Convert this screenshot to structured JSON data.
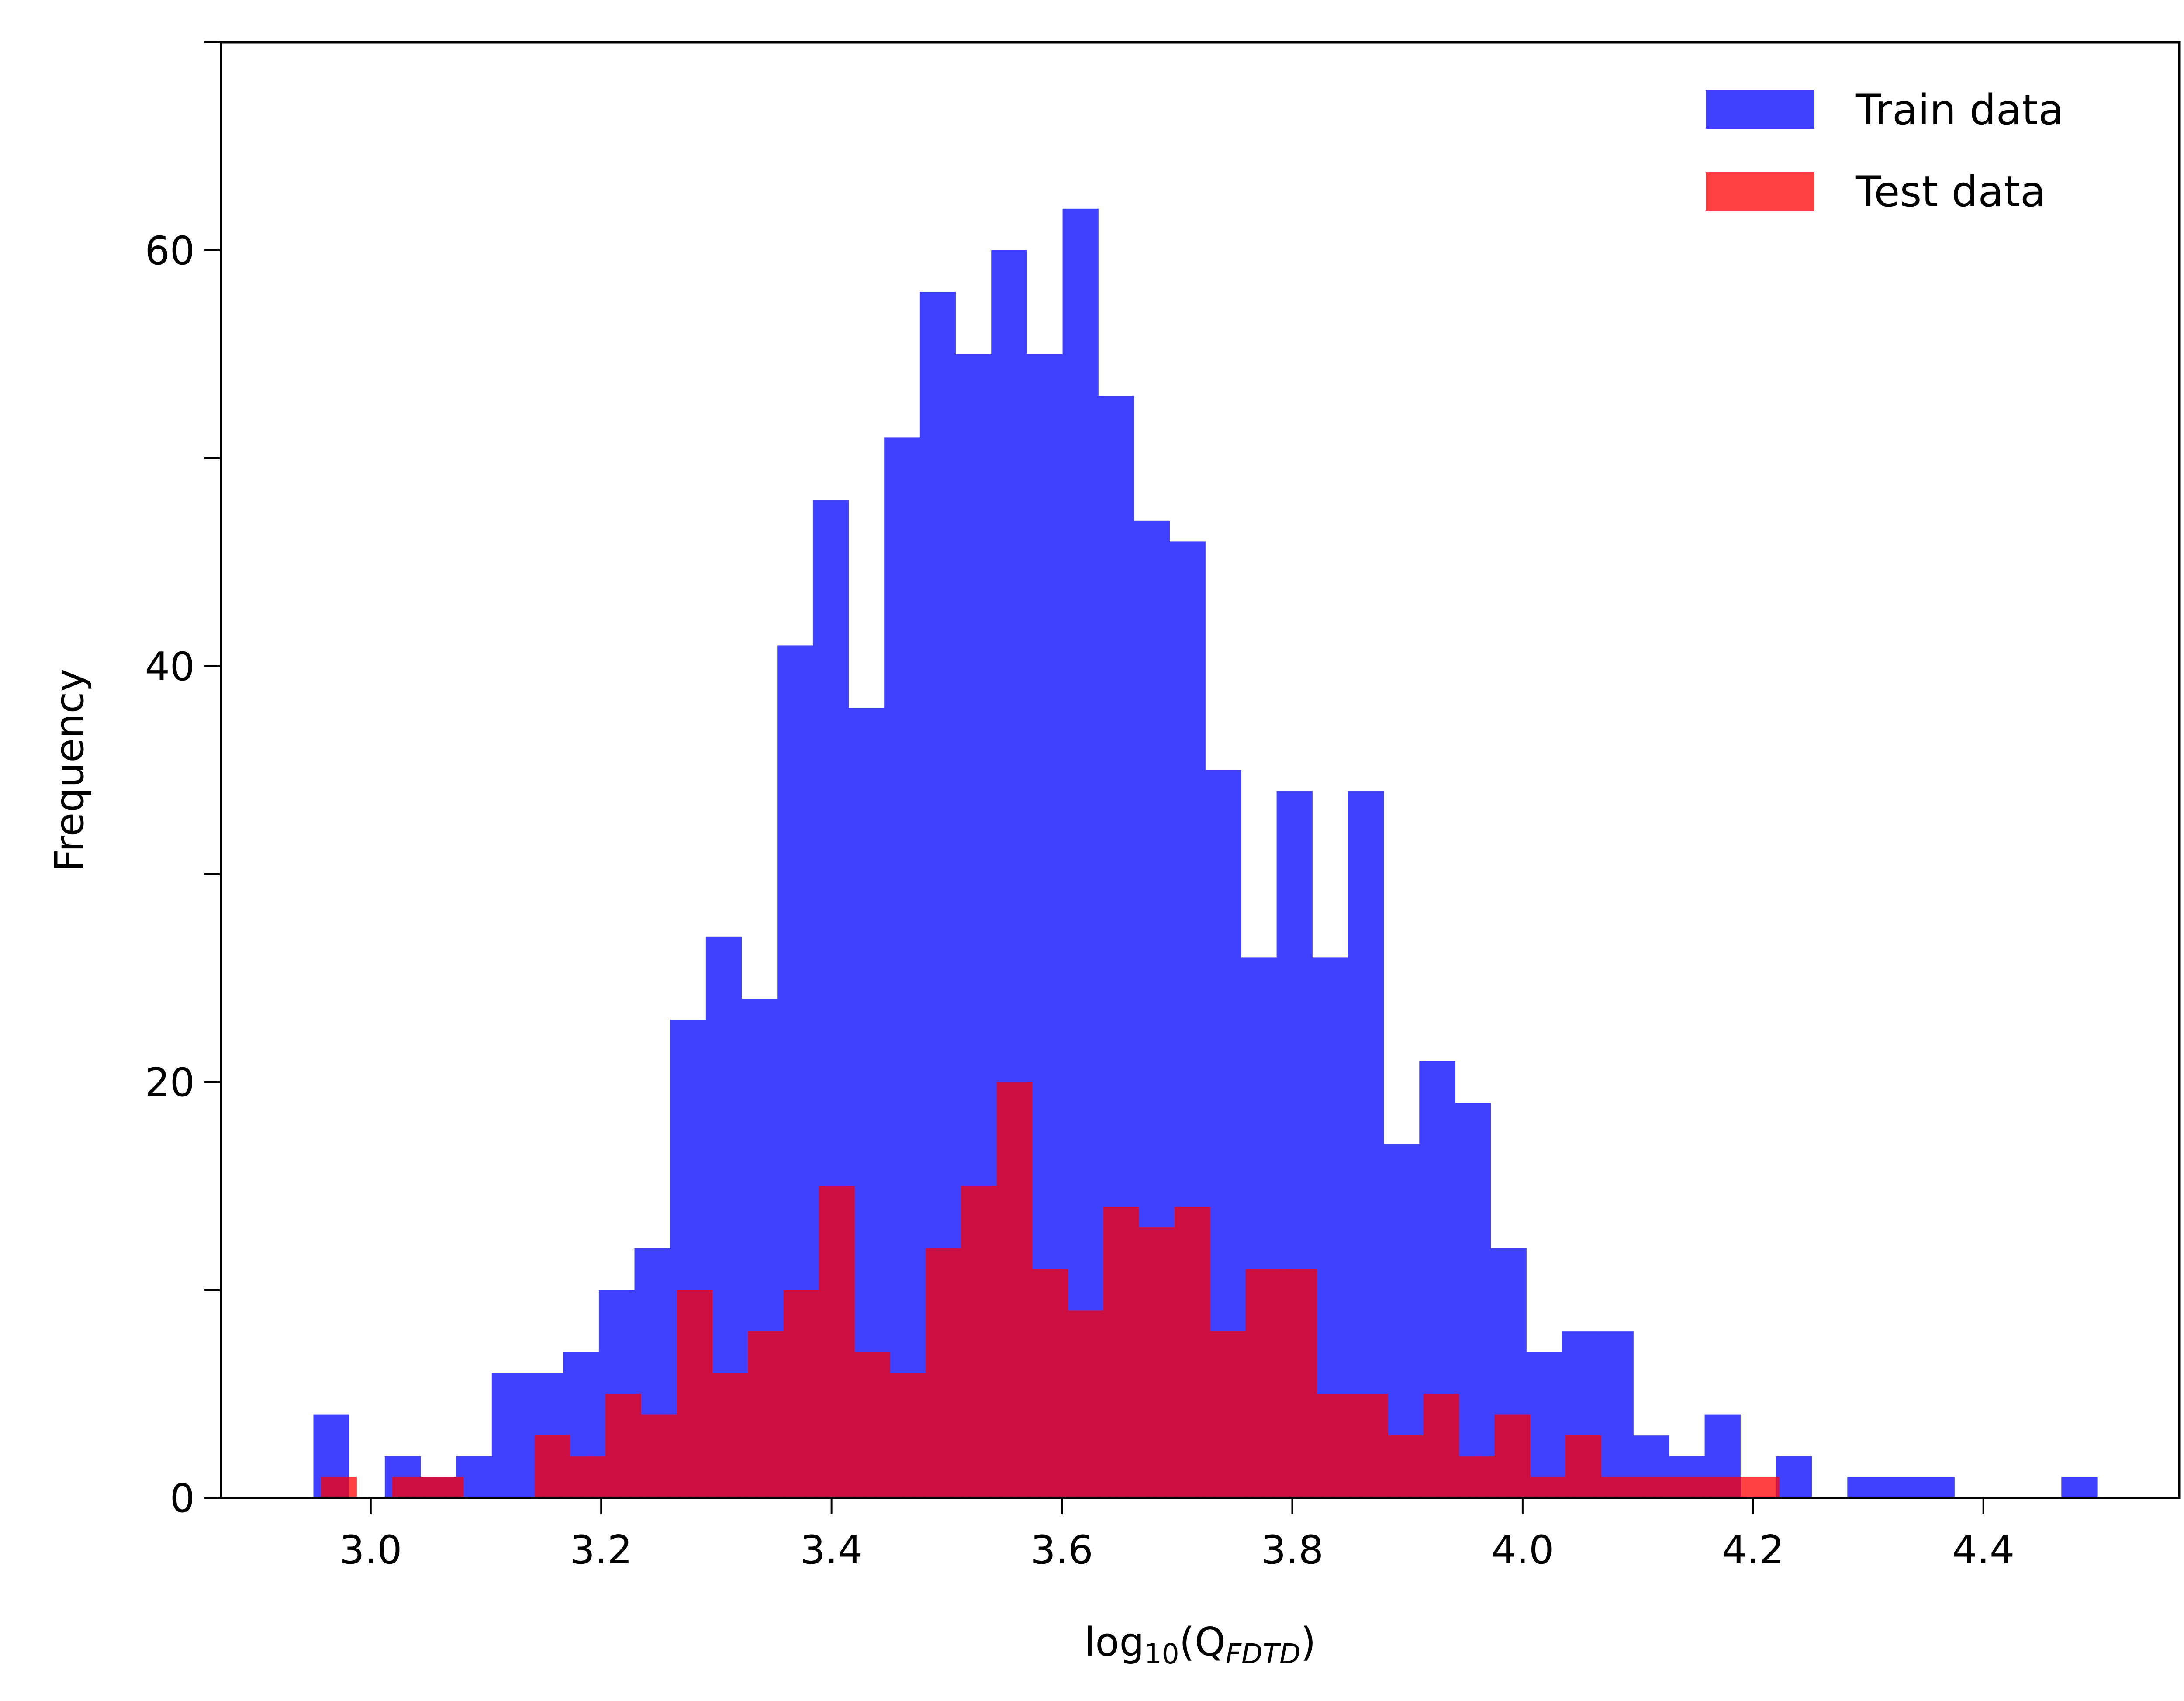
{
  "chart_data": {
    "type": "bar",
    "xlabel": {
      "base": "log",
      "base_sub": "10",
      "open": "(Q",
      "sub": "FDTD",
      "close": ")"
    },
    "ylabel": "Frequency",
    "xlim": [
      2.87,
      4.57
    ],
    "ylim": [
      0,
      70
    ],
    "xticks": [
      3.0,
      3.2,
      3.4,
      3.6,
      3.8,
      4.0,
      4.2,
      4.4
    ],
    "xtick_labels": [
      "3.0",
      "3.2",
      "3.4",
      "3.6",
      "3.8",
      "4.0",
      "4.2",
      "4.4"
    ],
    "yticks": [
      0,
      10,
      20,
      30,
      40,
      50,
      60,
      70
    ],
    "ytick_labels": [
      "0",
      "",
      "20",
      "",
      "40",
      "",
      "60",
      ""
    ],
    "legend_position": "top-right",
    "series": [
      {
        "name": "Train data",
        "color": "#4040ff",
        "bins": {
          "start": 2.9502,
          "width": 0.03097,
          "count": 50
        },
        "values": [
          4,
          0,
          2,
          1,
          2,
          6,
          6,
          7,
          10,
          12,
          23,
          27,
          24,
          41,
          48,
          38,
          51,
          58,
          55,
          60,
          55,
          62,
          53,
          47,
          46,
          35,
          26,
          34,
          26,
          34,
          17,
          21,
          19,
          12,
          7,
          8,
          8,
          3,
          2,
          4,
          0,
          2,
          0,
          1,
          1,
          1,
          0,
          0,
          0,
          1
        ]
      },
      {
        "name": "Test data",
        "color": "#ff4040",
        "overlap_color": "#cc0f40",
        "bins": {
          "start": 2.9568,
          "width": 0.03087,
          "count": 41
        },
        "values": [
          1,
          0,
          1,
          1,
          0,
          0,
          3,
          2,
          5,
          4,
          10,
          6,
          8,
          10,
          15,
          7,
          6,
          12,
          15,
          20,
          11,
          9,
          14,
          13,
          14,
          8,
          11,
          11,
          5,
          5,
          3,
          5,
          2,
          4,
          1,
          3,
          1,
          1,
          1,
          1,
          1
        ]
      }
    ]
  }
}
